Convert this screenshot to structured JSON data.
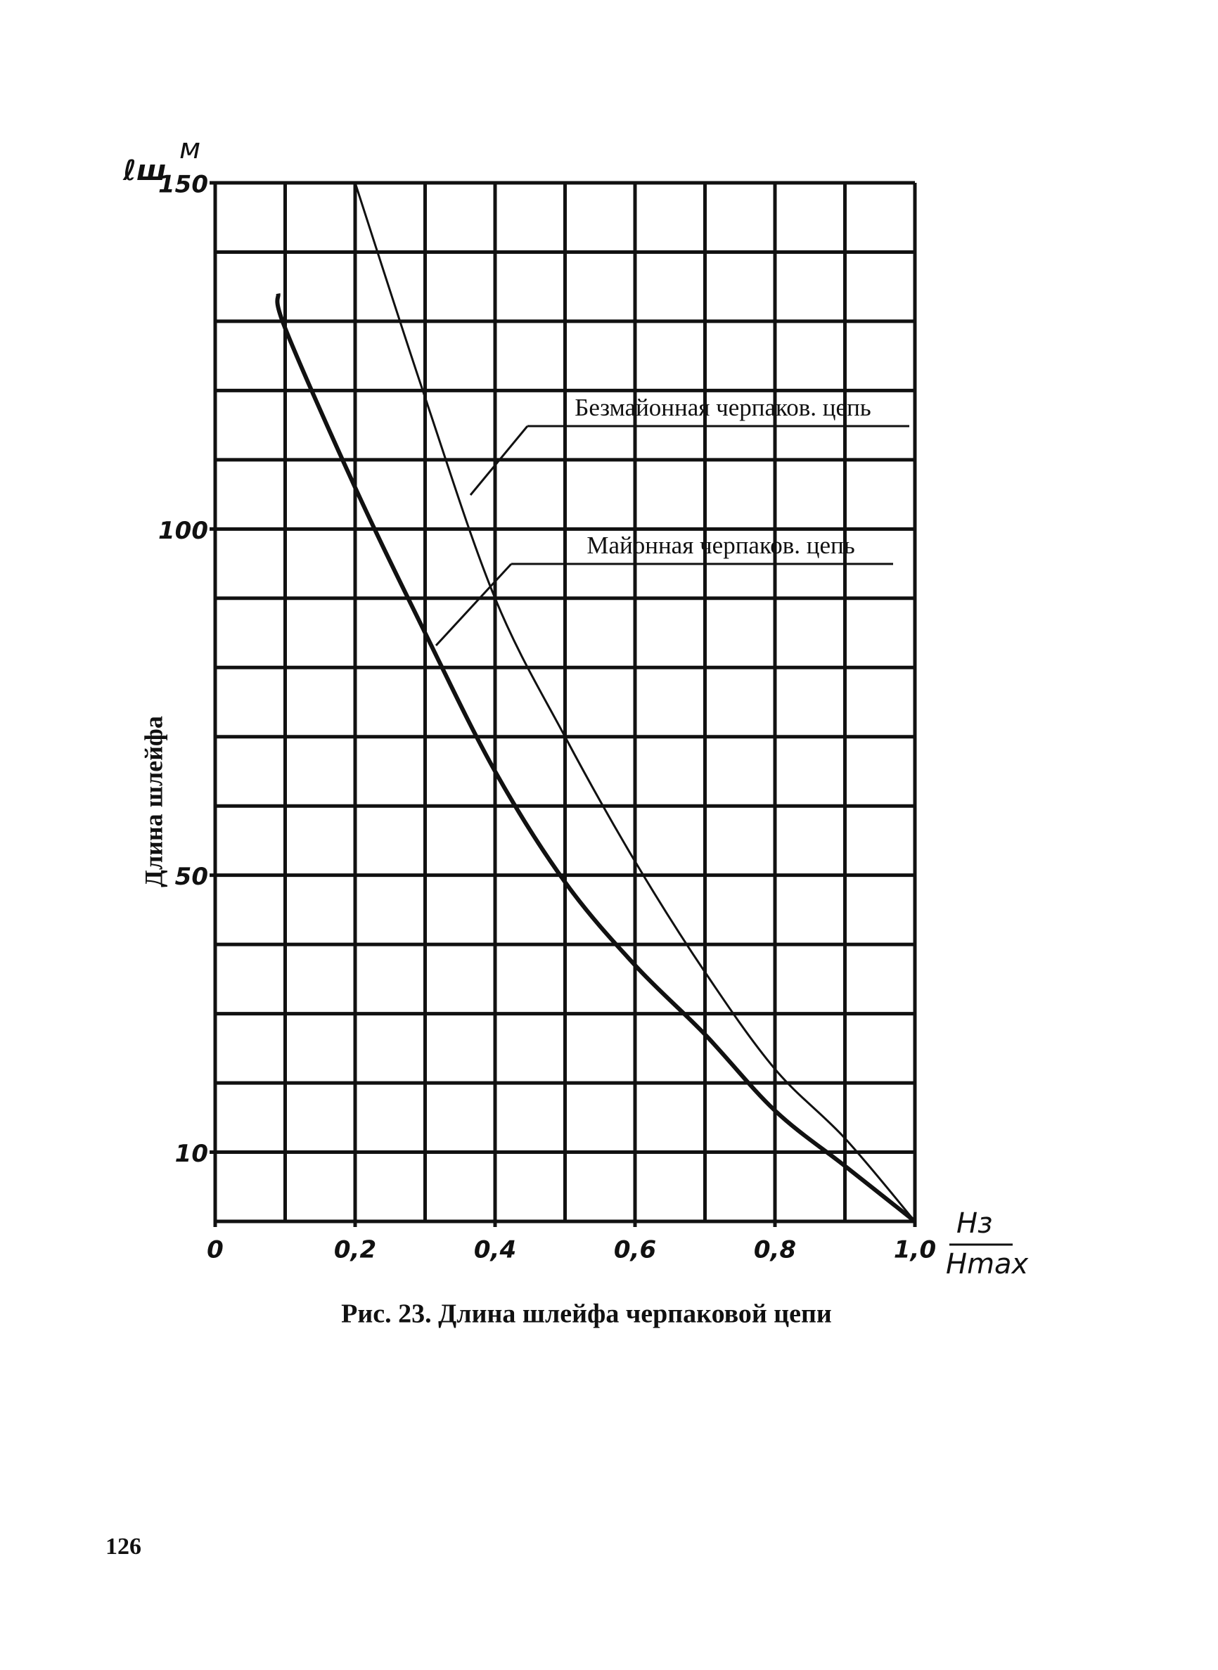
{
  "chart_data": {
    "type": "line",
    "title": "Рис. 23. Длина шлейфа черпаковой цепи",
    "y_label": "Длина шлейфа",
    "y_unit_symbol": "ℓш",
    "y_unit": "м",
    "x_unit_numerator": "Hз",
    "x_unit_denominator": "Hmax",
    "page_number": "126",
    "x": [
      0.09,
      0.1,
      0.2,
      0.3,
      0.4,
      0.5,
      0.6,
      0.7,
      0.8,
      0.9,
      1.0
    ],
    "series": [
      {
        "name": "Безмайонная черпаков. цепь",
        "color": "#111111",
        "values": [
          null,
          null,
          150,
          119,
          90,
          70,
          52,
          36,
          22,
          12,
          0
        ]
      },
      {
        "name": "Майонная черпаков. цепь",
        "color": "#111111",
        "values": [
          134,
          129,
          106,
          85,
          65,
          49,
          37,
          27,
          16,
          8,
          0
        ]
      }
    ],
    "xlim": [
      0,
      1.0
    ],
    "ylim": [
      0,
      150
    ],
    "xticks": [
      0,
      {
        "value": 0.2,
        "label": "0,2"
      },
      {
        "value": 0.4,
        "label": "0,4"
      },
      {
        "value": 0.6,
        "label": "0,6"
      },
      {
        "value": 0.8,
        "label": "0,8"
      },
      {
        "value": 1.0,
        "label": "1,0"
      }
    ],
    "yticks": [
      10,
      50,
      100,
      150
    ],
    "x_grid": [
      0,
      0.1,
      0.2,
      0.3,
      0.4,
      0.5,
      0.6,
      0.7,
      0.8,
      0.9,
      1.0
    ],
    "y_grid": [
      0,
      10,
      20,
      30,
      40,
      50,
      60,
      70,
      80,
      90,
      100,
      110,
      120,
      130,
      140,
      150
    ],
    "grid": true
  }
}
